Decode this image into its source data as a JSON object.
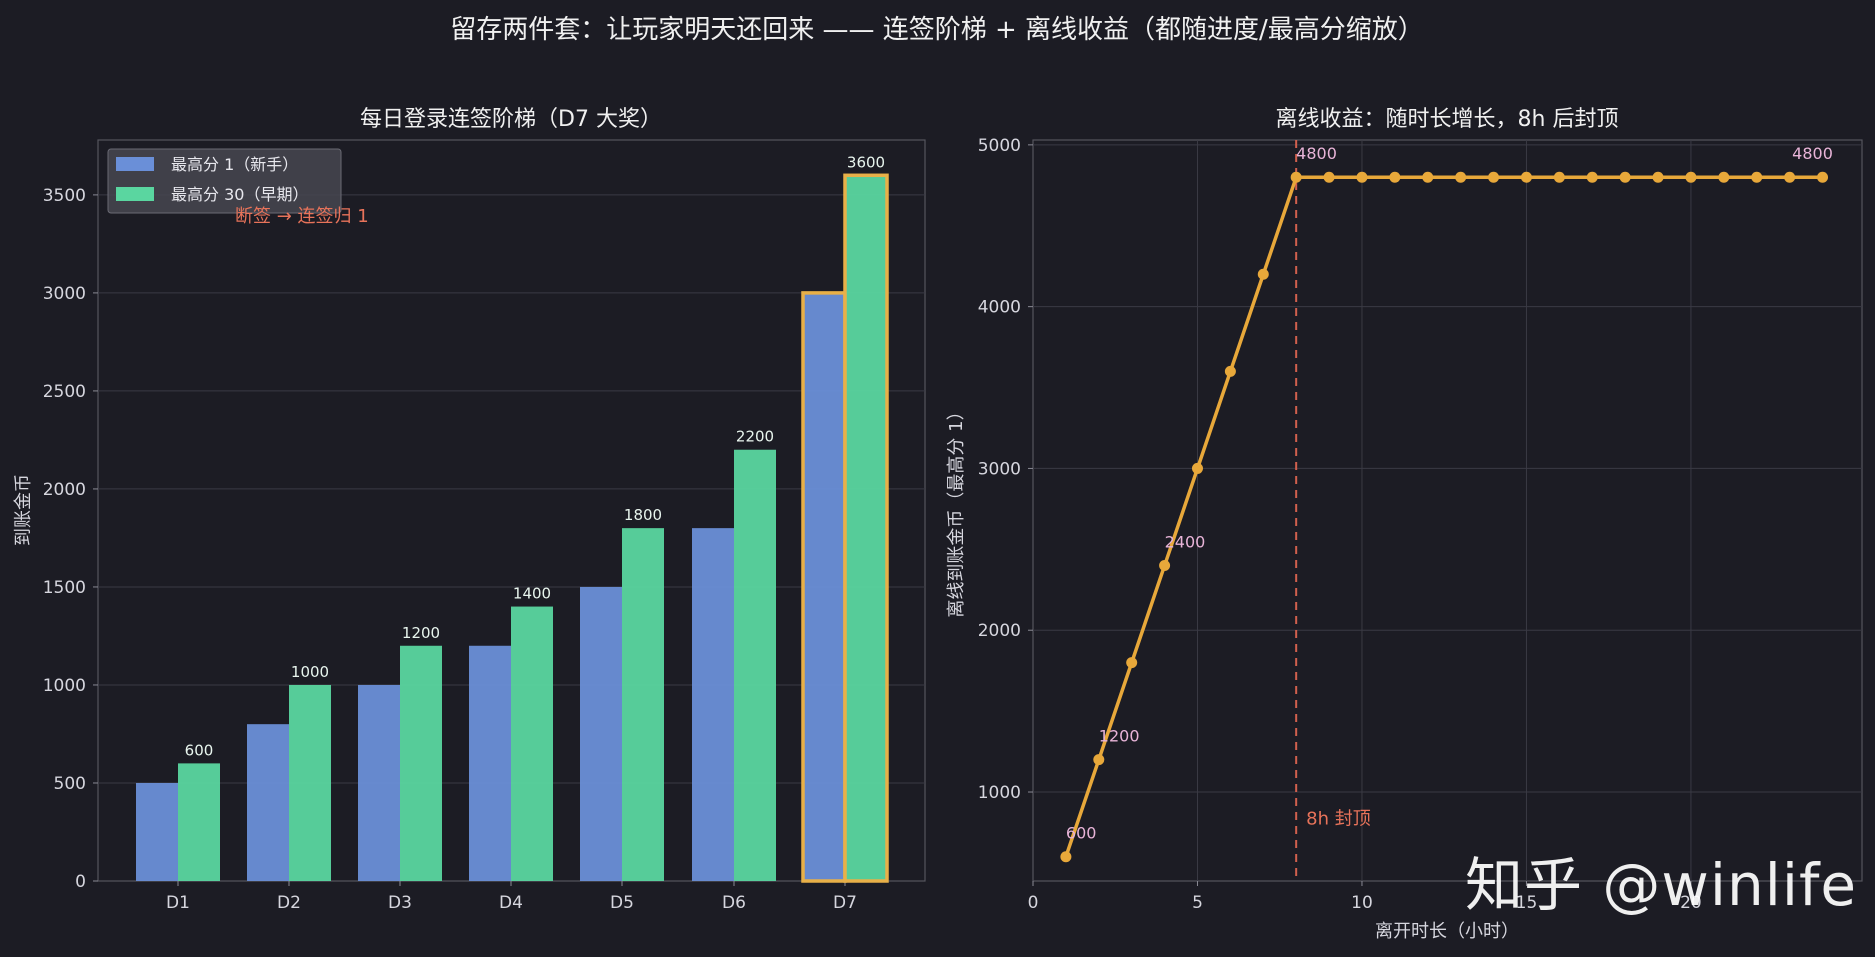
{
  "page": {
    "title": "留存两件套：让玩家明天还回来 —— 连签阶梯 + 离线收益（都随进度/最高分缩放）",
    "watermark": "知乎 @winlife"
  },
  "colors": {
    "background": "#1c1c24",
    "panel": "#1c1c24",
    "grid": "#3a3a44",
    "text": "#d6d6de",
    "series_novice": "#6a8fd8",
    "series_early": "#5ad6a0",
    "highlight": "#e8b048",
    "annotation": "#e8735a",
    "line": "#e8a83a",
    "point_label": "#e8b4d8"
  },
  "chart_data": [
    {
      "type": "bar",
      "title": "每日登录连签阶梯（D7 大奖）",
      "xlabel": "",
      "ylabel": "到账金币",
      "categories": [
        "D1",
        "D2",
        "D3",
        "D4",
        "D5",
        "D6",
        "D7"
      ],
      "series": [
        {
          "name": "最高分 1（新手）",
          "values": [
            500,
            800,
            1000,
            1200,
            1500,
            1800,
            3000
          ]
        },
        {
          "name": "最高分 30（早期）",
          "values": [
            600,
            1000,
            1200,
            1400,
            1800,
            2200,
            3600
          ]
        }
      ],
      "value_labels": [
        "600",
        "1000",
        "1200",
        "1400",
        "1800",
        "2200",
        "3600"
      ],
      "highlight_category": "D7",
      "annotation": "断签 → 连签归 1",
      "ylim": [
        0,
        3780
      ],
      "yticks": [
        "0",
        "500",
        "1000",
        "1500",
        "2000",
        "2500",
        "3000",
        "3500"
      ],
      "grid": true,
      "legend": "top-left"
    },
    {
      "type": "line",
      "title": "离线收益：随时长增长，8h 后封顶",
      "xlabel": "离开时长（小时）",
      "ylabel": "离线到账金币（最高分 1）",
      "x": [
        1,
        2,
        3,
        4,
        5,
        6,
        7,
        8,
        9,
        10,
        11,
        12,
        13,
        14,
        15,
        16,
        17,
        18,
        19,
        20,
        21,
        22,
        23,
        24
      ],
      "y": [
        600,
        1200,
        1800,
        2400,
        3000,
        3600,
        4200,
        4800,
        4800,
        4800,
        4800,
        4800,
        4800,
        4800,
        4800,
        4800,
        4800,
        4800,
        4800,
        4800,
        4800,
        4800,
        4800,
        4800
      ],
      "point_labels": [
        {
          "x": 1,
          "text": "600"
        },
        {
          "x": 2,
          "text": "1200"
        },
        {
          "x": 4,
          "text": "2400"
        },
        {
          "x": 8,
          "text": "4800"
        },
        {
          "x": 24,
          "text": "4800"
        }
      ],
      "cap_x": 8,
      "cap_label": "8h 封顶",
      "xlim": [
        0,
        25.2
      ],
      "ylim": [
        450,
        5030
      ],
      "xticks": [
        "0",
        "5",
        "10",
        "15",
        "20"
      ],
      "yticks": [
        "1000",
        "2000",
        "3000",
        "4000",
        "5000"
      ],
      "grid": true
    }
  ]
}
